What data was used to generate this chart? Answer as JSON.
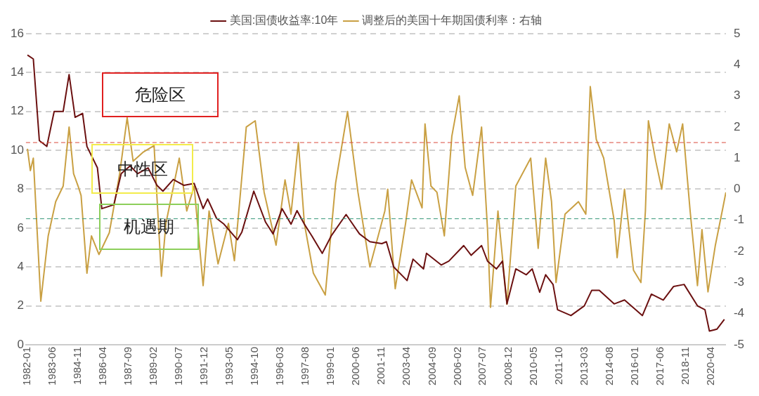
{
  "chart_data": {
    "type": "line",
    "legend": "top",
    "grid": "y",
    "marker": "none",
    "xlim": [
      "1981-12",
      "2021-02"
    ],
    "xticks": [
      "1982-01",
      "1983-06",
      "1984-11",
      "1986-04",
      "1987-09",
      "1989-02",
      "1990-07",
      "1991-12",
      "1993-05",
      "1994-10",
      "1996-03",
      "1997-08",
      "1999-01",
      "2000-06",
      "2001-11",
      "2003-04",
      "2004-09",
      "2006-02",
      "2007-07",
      "2008-12",
      "2010-05",
      "2011-10",
      "2013-03",
      "2014-08",
      "2016-01",
      "2017-06",
      "2018-11",
      "2020-04"
    ],
    "ylim": [
      0,
      16
    ],
    "yticks": [
      0,
      2,
      4,
      6,
      8,
      10,
      12,
      14,
      16
    ],
    "y2lim": [
      -5,
      5
    ],
    "y2ticks": [
      -5,
      -4,
      -3,
      -2,
      -1,
      0,
      1,
      2,
      3,
      4,
      5
    ],
    "series": [
      {
        "name": "美国:国债收益率:10年",
        "color": "#6b1010",
        "x": [
          "1982-01",
          "1982-05",
          "1982-09",
          "1983-02",
          "1983-07",
          "1984-01",
          "1984-05",
          "1984-09",
          "1985-02",
          "1985-05",
          "1985-12",
          "1986-03",
          "1986-11",
          "1987-04",
          "1987-10",
          "1988-03",
          "1988-10",
          "1989-04",
          "1989-08",
          "1990-03",
          "1990-10",
          "1991-05",
          "1991-11",
          "1992-02",
          "1992-08",
          "1993-01",
          "1993-10",
          "1994-01",
          "1994-09",
          "1995-05",
          "1995-10",
          "1996-04",
          "1996-10",
          "1997-02",
          "1997-07",
          "1997-12",
          "1998-07",
          "1999-01",
          "1999-11",
          "2000-08",
          "2001-03",
          "2001-11",
          "2002-02",
          "2002-07",
          "2003-04",
          "2003-08",
          "2004-03",
          "2004-05",
          "2005-03",
          "2005-08",
          "2006-06",
          "2006-11",
          "2007-06",
          "2007-10",
          "2008-04",
          "2008-08",
          "2008-11",
          "2009-05",
          "2009-12",
          "2010-04",
          "2010-09",
          "2011-01",
          "2011-06",
          "2011-09",
          "2012-06",
          "2013-03",
          "2013-08",
          "2014-01",
          "2014-11",
          "2015-06",
          "2016-06",
          "2016-12",
          "2017-08",
          "2018-03",
          "2018-10",
          "2019-07",
          "2019-12",
          "2020-03",
          "2020-08",
          "2021-01"
        ],
        "values": [
          14.9,
          14.7,
          10.5,
          10.2,
          12.0,
          12.0,
          13.9,
          11.7,
          11.9,
          10.2,
          9.1,
          7.0,
          7.2,
          8.8,
          9.2,
          8.8,
          9.1,
          8.2,
          7.9,
          8.5,
          8.2,
          8.3,
          7.0,
          7.5,
          6.5,
          6.2,
          5.4,
          5.8,
          7.9,
          6.3,
          5.7,
          7.0,
          6.2,
          6.9,
          6.2,
          5.6,
          4.7,
          5.6,
          6.7,
          5.7,
          5.3,
          5.2,
          5.3,
          4.0,
          3.3,
          4.4,
          3.9,
          4.7,
          4.1,
          4.3,
          5.1,
          4.6,
          5.1,
          4.3,
          3.9,
          4.3,
          2.1,
          3.9,
          3.6,
          3.9,
          2.7,
          3.6,
          3.1,
          1.8,
          1.5,
          2.0,
          2.8,
          2.8,
          2.1,
          2.3,
          1.5,
          2.6,
          2.3,
          3.0,
          3.1,
          2.0,
          1.8,
          0.7,
          0.8,
          1.3
        ]
      },
      {
        "name": "调整后的美国十年期国债利率：右轴",
        "color": "#c9a043",
        "axis": "y2",
        "x": [
          "1982-01",
          "1982-03",
          "1982-05",
          "1982-10",
          "1983-03",
          "1983-08",
          "1984-01",
          "1984-05",
          "1984-08",
          "1984-11",
          "1985-01",
          "1985-05",
          "1985-08",
          "1986-01",
          "1986-08",
          "1987-03",
          "1987-08",
          "1987-12",
          "1988-07",
          "1989-02",
          "1989-07",
          "1989-10",
          "1990-07",
          "1990-12",
          "1991-05",
          "1991-11",
          "1992-03",
          "1992-09",
          "1993-04",
          "1993-08",
          "1994-04",
          "1994-10",
          "1995-04",
          "1995-12",
          "1996-06",
          "1996-10",
          "1997-03",
          "1997-07",
          "1998-01",
          "1998-09",
          "1999-04",
          "1999-12",
          "2000-07",
          "2001-03",
          "2002-01",
          "2002-03",
          "2002-08",
          "2003-03",
          "2003-07",
          "2004-02",
          "2004-04",
          "2004-08",
          "2004-12",
          "2005-05",
          "2005-10",
          "2006-03",
          "2006-07",
          "2006-12",
          "2007-06",
          "2007-10",
          "2007-12",
          "2008-05",
          "2008-11",
          "2009-05",
          "2010-03",
          "2010-08",
          "2011-01",
          "2011-05",
          "2011-08",
          "2012-02",
          "2012-11",
          "2013-04",
          "2013-07",
          "2013-11",
          "2014-04",
          "2014-11",
          "2015-01",
          "2015-06",
          "2015-12",
          "2016-05",
          "2016-08",
          "2016-10",
          "2017-03",
          "2017-07",
          "2017-12",
          "2018-05",
          "2018-09",
          "2019-02",
          "2019-07",
          "2019-10",
          "2020-02",
          "2020-07",
          "2020-12",
          "2021-02"
        ],
        "values": [
          1.3,
          0.6,
          1.0,
          -3.6,
          -1.5,
          -0.4,
          0.1,
          2.0,
          0.5,
          0.1,
          -0.2,
          -2.7,
          -1.5,
          -2.1,
          -1.4,
          0.5,
          2.3,
          0.9,
          1.2,
          1.4,
          -2.8,
          -1.1,
          1.0,
          -0.7,
          0.1,
          -3.1,
          -0.7,
          -2.4,
          -1.1,
          -2.3,
          2.0,
          2.2,
          -0.1,
          -1.8,
          0.3,
          -0.8,
          1.5,
          -1.1,
          -2.7,
          -3.4,
          0.2,
          2.5,
          -0.1,
          -2.5,
          -0.7,
          0.0,
          -3.2,
          -1.1,
          0.3,
          -0.6,
          2.1,
          0.1,
          -0.1,
          -1.5,
          1.7,
          3.0,
          0.7,
          -0.2,
          2.0,
          -1.3,
          -3.8,
          -0.7,
          -3.7,
          0.1,
          1.0,
          -1.9,
          1.0,
          -0.4,
          -3.0,
          -0.8,
          -0.4,
          -0.8,
          3.3,
          1.6,
          1.0,
          -1.0,
          -2.2,
          0.0,
          -2.6,
          -3.0,
          -0.7,
          2.2,
          0.9,
          0.0,
          2.1,
          1.2,
          2.1,
          -0.7,
          -3.1,
          -1.3,
          -3.3,
          -1.8,
          -0.6,
          -0.1
        ]
      }
    ],
    "ref_lines": [
      {
        "axis": "y2",
        "value": 1.5,
        "color": "#d94a3a",
        "line_style": "dashed"
      },
      {
        "axis": "y2",
        "value": -0.95,
        "color": "#3a9a7a",
        "line_style": "dashed"
      }
    ],
    "annotations": [
      "危险区",
      "中性区",
      "机遇期"
    ]
  }
}
